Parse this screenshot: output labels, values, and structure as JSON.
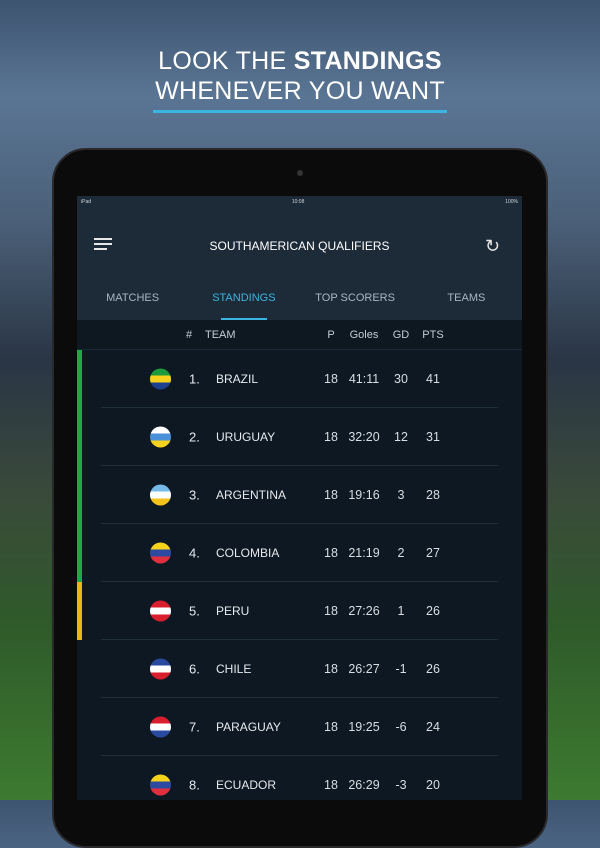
{
  "promo": {
    "line1_prefix": "LOOK THE ",
    "line1_bold": "STANDINGS",
    "line2": "WHENEVER YOU WANT",
    "accent": "#3ab4e0"
  },
  "status_bar": {
    "device": "iPad",
    "time": "10:08",
    "battery": "100%"
  },
  "header": {
    "title": "SOUTHAMERICAN QUALIFIERS",
    "menu_icon": "hamburger-icon",
    "refresh_icon": "refresh-icon"
  },
  "tabs": [
    {
      "label": "MATCHES"
    },
    {
      "label": "STANDINGS",
      "active": true
    },
    {
      "label": "TOP SCORERS"
    },
    {
      "label": "TEAMS"
    }
  ],
  "table": {
    "columns": {
      "rank": "#",
      "team": "TEAM",
      "played": "P",
      "goals": "Goles",
      "gd": "GD",
      "pts": "PTS"
    },
    "rows": [
      {
        "rank": "1.",
        "team": "BRAZIL",
        "p": "18",
        "goals": "41:11",
        "gd": "30",
        "pts": "41",
        "zone": "#1fa84a",
        "flag": [
          "#1c9a3c",
          "#f6d21c",
          "#1f3f8f"
        ]
      },
      {
        "rank": "2.",
        "team": "URUGUAY",
        "p": "18",
        "goals": "32:20",
        "gd": "12",
        "pts": "31",
        "zone": "#1fa84a",
        "flag": [
          "#ffffff",
          "#4a90d9",
          "#f6d21c"
        ]
      },
      {
        "rank": "3.",
        "team": "ARGENTINA",
        "p": "18",
        "goals": "19:16",
        "gd": "3",
        "pts": "28",
        "zone": "#1fa84a",
        "flag": [
          "#74b9e8",
          "#ffffff",
          "#f6c21c"
        ]
      },
      {
        "rank": "4.",
        "team": "COLOMBIA",
        "p": "18",
        "goals": "21:19",
        "gd": "2",
        "pts": "27",
        "zone": "#1fa84a",
        "flag": [
          "#f6d21c",
          "#2b4aa0",
          "#e03040"
        ]
      },
      {
        "rank": "5.",
        "team": "PERU",
        "p": "18",
        "goals": "27:26",
        "gd": "1",
        "pts": "26",
        "zone": "#e5b81c",
        "flag": [
          "#d91e2e",
          "#ffffff",
          "#d91e2e"
        ]
      },
      {
        "rank": "6.",
        "team": "CHILE",
        "p": "18",
        "goals": "26:27",
        "gd": "-1",
        "pts": "26",
        "zone": "",
        "flag": [
          "#2a4aa0",
          "#ffffff",
          "#d91e2e"
        ]
      },
      {
        "rank": "7.",
        "team": "PARAGUAY",
        "p": "18",
        "goals": "19:25",
        "gd": "-6",
        "pts": "24",
        "zone": "",
        "flag": [
          "#d91e2e",
          "#ffffff",
          "#2a4aa0"
        ]
      },
      {
        "rank": "8.",
        "team": "ECUADOR",
        "p": "18",
        "goals": "26:29",
        "gd": "-3",
        "pts": "20",
        "zone": "",
        "flag": [
          "#f6d21c",
          "#2b4aa0",
          "#e03040"
        ]
      }
    ]
  }
}
